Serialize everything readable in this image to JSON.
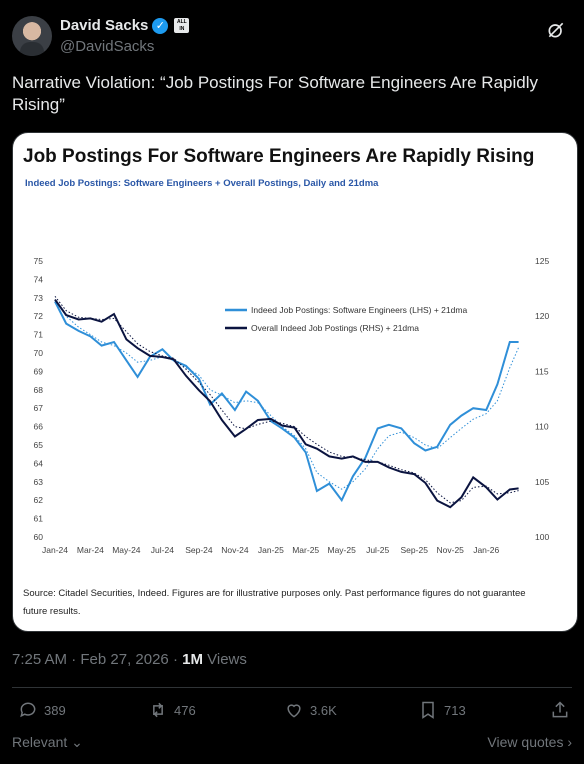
{
  "author": {
    "display_name": "David Sacks",
    "handle": "@DavidSacks",
    "verified_mark": "✓",
    "affiliation_badge": "ALL IN"
  },
  "tweet": {
    "text": "Narrative Violation: “Job Postings For Software Engineers Are Rapidly Rising”"
  },
  "card": {
    "title": "Job Postings For Software Engineers Are Rapidly Rising",
    "subtitle": "Indeed Job Postings: Software Engineers + Overall Postings, Daily and 21dma",
    "source": "Source: Citadel Securities, Indeed. Figures are for illustrative purposes only. Past performance figures do not guarantee future results."
  },
  "chart_data": {
    "type": "line",
    "title": "Job Postings For Software Engineers Are Rapidly Rising",
    "subtitle": "Indeed Job Postings: Software Engineers + Overall Postings, Daily and 21dma",
    "x_ticks": [
      "Jan-24",
      "Mar-24",
      "May-24",
      "Jul-24",
      "Sep-24",
      "Nov-24",
      "Jan-25",
      "Mar-25",
      "May-25",
      "Jul-25",
      "Sep-25",
      "Nov-25",
      "Jan-26"
    ],
    "y_left": {
      "min": 60,
      "max": 75,
      "ticks": [
        60,
        61,
        62,
        63,
        64,
        65,
        66,
        67,
        68,
        69,
        70,
        71,
        72,
        73,
        74,
        75
      ]
    },
    "y_right": {
      "min": 100,
      "max": 125,
      "ticks": [
        100,
        105,
        110,
        115,
        120,
        125
      ]
    },
    "legend_placement": "upper-center",
    "colors": {
      "software_engineers": "#2f8fd8",
      "overall": "#0b1440"
    },
    "series": [
      {
        "name": "Indeed Job Postings: Software Engineers (LHS) + 21dma",
        "axis": "left",
        "x": [
          "2024-01-01",
          "2024-01-20",
          "2024-02-10",
          "2024-03-01",
          "2024-03-20",
          "2024-04-10",
          "2024-05-01",
          "2024-05-20",
          "2024-06-10",
          "2024-07-01",
          "2024-07-20",
          "2024-08-10",
          "2024-09-01",
          "2024-09-20",
          "2024-10-10",
          "2024-11-01",
          "2024-11-20",
          "2024-12-10",
          "2025-01-01",
          "2025-01-20",
          "2025-02-10",
          "2025-03-01",
          "2025-03-20",
          "2025-04-10",
          "2025-05-01",
          "2025-05-20",
          "2025-06-10",
          "2025-07-01",
          "2025-07-20",
          "2025-08-10",
          "2025-09-01",
          "2025-09-20",
          "2025-10-10",
          "2025-11-01",
          "2025-11-20",
          "2025-12-10",
          "2026-01-01",
          "2026-01-20",
          "2026-02-10",
          "2026-02-25"
        ],
        "values": [
          72.8,
          71.6,
          71.2,
          70.9,
          70.4,
          70.6,
          69.6,
          68.7,
          69.8,
          70.2,
          69.6,
          69.3,
          68.6,
          67.2,
          67.8,
          66.9,
          67.9,
          67.4,
          66.3,
          65.9,
          65.4,
          64.6,
          62.5,
          62.9,
          62.0,
          63.3,
          64.3,
          65.9,
          66.1,
          65.9,
          65.1,
          64.7,
          64.9,
          66.1,
          66.6,
          67.0,
          66.9,
          68.3,
          70.6,
          70.6
        ],
        "dma21": [
          72.9,
          72.0,
          71.4,
          71.0,
          70.6,
          70.4,
          70.0,
          69.5,
          69.6,
          69.8,
          69.6,
          69.2,
          68.8,
          68.0,
          67.7,
          67.3,
          67.4,
          67.3,
          66.6,
          66.0,
          65.5,
          64.8,
          63.5,
          63.0,
          62.6,
          63.0,
          63.7,
          64.8,
          65.5,
          65.7,
          65.4,
          65.0,
          64.8,
          65.4,
          65.9,
          66.4,
          66.7,
          67.4,
          69.2,
          70.3
        ]
      },
      {
        "name": "Overall Indeed Job Postings (RHS) + 21dma",
        "axis": "right",
        "x": [
          "2024-01-01",
          "2024-01-20",
          "2024-02-10",
          "2024-03-01",
          "2024-03-20",
          "2024-04-10",
          "2024-05-01",
          "2024-05-20",
          "2024-06-10",
          "2024-07-01",
          "2024-07-20",
          "2024-08-10",
          "2024-09-01",
          "2024-09-20",
          "2024-10-10",
          "2024-11-01",
          "2024-11-20",
          "2024-12-10",
          "2025-01-01",
          "2025-01-20",
          "2025-02-10",
          "2025-03-01",
          "2025-03-20",
          "2025-04-10",
          "2025-05-01",
          "2025-05-20",
          "2025-06-10",
          "2025-07-01",
          "2025-07-20",
          "2025-08-10",
          "2025-09-01",
          "2025-09-20",
          "2025-10-10",
          "2025-11-01",
          "2025-11-20",
          "2025-12-10",
          "2026-01-01",
          "2026-01-20",
          "2026-02-10",
          "2026-02-25"
        ],
        "values": [
          121.5,
          120.1,
          119.7,
          119.8,
          119.5,
          120.2,
          117.9,
          117.1,
          116.4,
          116.3,
          116.1,
          114.6,
          113.3,
          112.3,
          110.6,
          109.1,
          109.8,
          110.6,
          110.7,
          110.1,
          109.9,
          108.4,
          108.0,
          107.3,
          107.1,
          107.3,
          106.8,
          106.8,
          106.3,
          105.9,
          105.7,
          104.9,
          103.3,
          102.7,
          103.6,
          105.4,
          104.5,
          103.4,
          104.3,
          104.4
        ],
        "dma21": [
          121.8,
          120.5,
          119.9,
          119.8,
          119.7,
          119.8,
          118.6,
          117.5,
          116.8,
          116.4,
          116.2,
          115.2,
          114.0,
          112.9,
          111.5,
          110.0,
          109.8,
          110.2,
          110.5,
          110.3,
          110.0,
          109.1,
          108.4,
          107.7,
          107.3,
          107.2,
          107.0,
          106.8,
          106.5,
          106.1,
          105.8,
          105.2,
          104.0,
          103.1,
          103.3,
          104.5,
          104.6,
          103.9,
          104.0,
          104.2
        ]
      }
    ]
  },
  "meta": {
    "timestamp": "7:25 AM · Feb 27, 2026",
    "separator": "·",
    "views_count": "1M",
    "views_label": "Views"
  },
  "actions": {
    "replies": "389",
    "reposts": "476",
    "likes": "3.6K",
    "bookmarks": "713"
  },
  "footer": {
    "relevant_label": "Relevant",
    "view_quotes_label": "View quotes"
  }
}
